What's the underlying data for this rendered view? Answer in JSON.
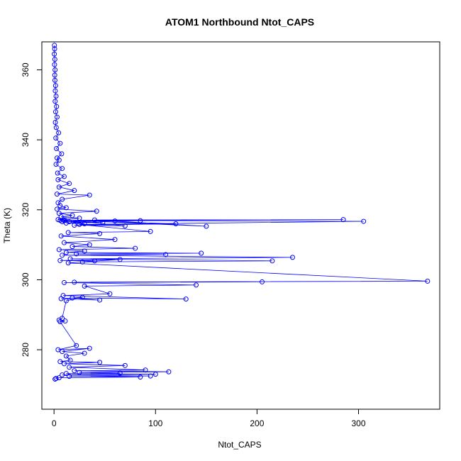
{
  "chart_data": {
    "type": "line",
    "title": "ATOM1 Northbound Ntot_CAPS",
    "xlabel": "Ntot_CAPS",
    "ylabel": "Theta (K)",
    "xlim": [
      -12,
      380
    ],
    "ylim": [
      263,
      368
    ],
    "x_ticks": [
      0,
      100,
      200,
      300
    ],
    "y_ticks": [
      280,
      300,
      320,
      340,
      360
    ],
    "x_tick_labels": [
      "0",
      "100",
      "200",
      "300"
    ],
    "y_tick_labels": [
      "280",
      "300",
      "320",
      "340",
      "360"
    ],
    "grid": false,
    "legend": "none",
    "series": [
      {
        "color": "#0000ff",
        "marker": "open-circle",
        "x": [
          0.4,
          0.6,
          0.3,
          0.8,
          0.5,
          1.0,
          0.7,
          0.9,
          1.5,
          1.2,
          2.0,
          1.1,
          2.5,
          1.6,
          3.0,
          1.3,
          2.2,
          4.5,
          1.8,
          6.0,
          2.4,
          7.5,
          3.0,
          5.0,
          2.0,
          8.0,
          3.5,
          10.0,
          4.0,
          15.0,
          5.0,
          20.0,
          3.0,
          35.0,
          8.0,
          4.0,
          6.0,
          12.0,
          3.0,
          42.0,
          5.0,
          18.0,
          7.0,
          25.0,
          4.0,
          10.0,
          60.0,
          8.0,
          48.0,
          12.0,
          30.0,
          15.0,
          85.0,
          6.0,
          120.0,
          20.0,
          70.0,
          9.0,
          150.0,
          40.0,
          285.0,
          11.0,
          305.0,
          25.0,
          95.0,
          14.0,
          45.0,
          7.0,
          60.0,
          10.0,
          35.0,
          18.0,
          80.0,
          5.0,
          30.0,
          12.0,
          145.0,
          22.0,
          110.0,
          8.0,
          235.0,
          16.0,
          215.0,
          28.0,
          65.0,
          6.0,
          40.0,
          14.0,
          368.0,
          20.0,
          205.0,
          10.0,
          140.0,
          30.0,
          55.0,
          9.0,
          130.0,
          18.0,
          45.0,
          7.0,
          28.0,
          12.0,
          8.0,
          5.0,
          11.0,
          6.0,
          22.0,
          4.0,
          35.0,
          8.0,
          30.0,
          12.0,
          16.0,
          6.0,
          45.0,
          10.0,
          70.0,
          15.0,
          90.0,
          20.0,
          113.0,
          25.0,
          65.0,
          12.0,
          100.0,
          8.0,
          95.0,
          15.0,
          85.0,
          5.0,
          2.0,
          1.0
        ],
        "y": [
          367.0,
          366.0,
          364.5,
          363.0,
          361.5,
          360.0,
          358.5,
          357.0,
          355.5,
          354.0,
          352.5,
          351.0,
          349.5,
          348.0,
          346.5,
          345.0,
          343.5,
          342.0,
          340.5,
          339.0,
          337.5,
          336.0,
          334.8,
          334.2,
          333.0,
          331.8,
          330.5,
          329.5,
          328.6,
          327.5,
          326.5,
          325.5,
          324.5,
          324.2,
          323.0,
          322.0,
          321.2,
          320.6,
          320.2,
          319.6,
          319.0,
          318.4,
          318.0,
          317.6,
          317.2,
          316.9,
          316.8,
          316.6,
          316.4,
          316.2,
          316.0,
          316.6,
          316.9,
          317.0,
          316.0,
          315.6,
          315.4,
          317.1,
          315.3,
          317.1,
          317.2,
          317.0,
          316.7,
          315.8,
          313.8,
          313.5,
          313.2,
          312.5,
          311.5,
          310.6,
          310.0,
          309.5,
          309.0,
          308.6,
          308.2,
          307.8,
          307.6,
          307.4,
          307.2,
          307.0,
          306.4,
          306.0,
          305.4,
          305.1,
          305.8,
          305.5,
          305.4,
          304.8,
          299.6,
          299.3,
          299.4,
          299.2,
          298.5,
          298.2,
          296.0,
          295.5,
          294.5,
          294.8,
          294.2,
          294.6,
          295.0,
          294.0,
          289.0,
          288.5,
          288.2,
          288.0,
          281.2,
          280.0,
          280.4,
          279.5,
          279.0,
          278.2,
          277.0,
          276.6,
          276.4,
          276.0,
          275.5,
          275.0,
          274.2,
          274.0,
          273.7,
          273.5,
          273.3,
          273.2,
          273.0,
          272.8,
          272.5,
          272.4,
          272.2,
          272.0,
          271.8,
          271.6
        ]
      }
    ]
  }
}
